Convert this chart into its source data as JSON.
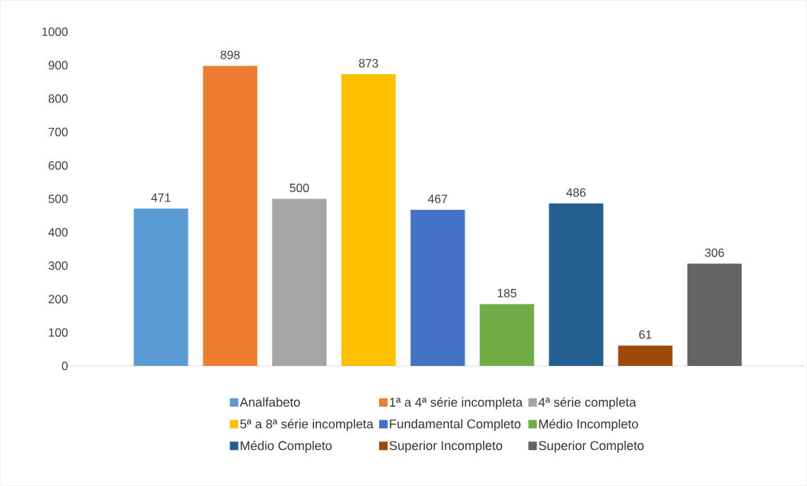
{
  "chart_data": {
    "type": "bar",
    "categories": [
      null
    ],
    "ylim": [
      0,
      1000
    ],
    "yticks": [
      0,
      100,
      200,
      300,
      400,
      500,
      600,
      700,
      800,
      900,
      1000
    ],
    "data_labels": true,
    "legend": "bottom",
    "tick_labels": "y",
    "series": [
      {
        "name": "Analfabeto",
        "color": "#5b9bd5",
        "values": [
          471
        ]
      },
      {
        "name": "1ª a 4ª série incompleta",
        "color": "#ed7d31",
        "values": [
          898
        ]
      },
      {
        "name": "4ª série completa",
        "color": "#a5a5a5",
        "values": [
          500
        ]
      },
      {
        "name": "5ª a 8ª série incompleta",
        "color": "#ffc000",
        "values": [
          873
        ]
      },
      {
        "name": "Fundamental Completo",
        "color": "#4472c4",
        "values": [
          467
        ]
      },
      {
        "name": "Médio Incompleto",
        "color": "#70ad47",
        "values": [
          185
        ]
      },
      {
        "name": "Médio Completo",
        "color": "#255e91",
        "values": [
          486
        ]
      },
      {
        "name": "Superior Incompleto",
        "color": "#9e480e",
        "values": [
          61
        ]
      },
      {
        "name": "Superior Completo",
        "color": "#636363",
        "values": [
          306
        ]
      }
    ]
  }
}
